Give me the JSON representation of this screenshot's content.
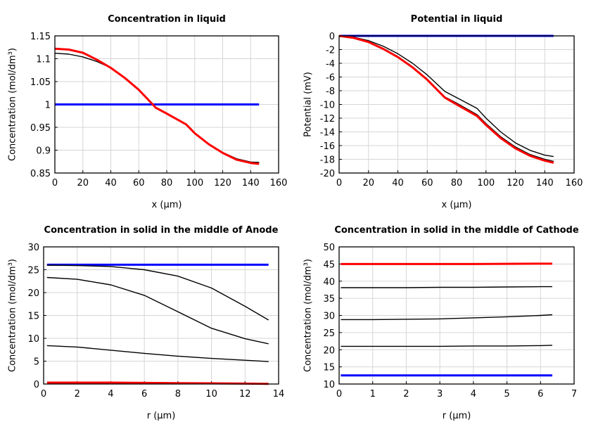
{
  "chart_data": [
    {
      "type": "line",
      "title": "Concentration in liquid",
      "xlabel": "x (µm)",
      "ylabel": "Concentration (mol/dm³)",
      "xlim": [
        0,
        160
      ],
      "ylim": [
        0.85,
        1.15
      ],
      "xticks": [
        0,
        20,
        40,
        60,
        80,
        100,
        120,
        140,
        160
      ],
      "yticks": [
        0.85,
        0.9,
        0.95,
        1,
        1.05,
        1.1,
        1.15
      ],
      "ytick_labels": [
        "0.85",
        "0.9",
        "0.95",
        "1",
        "1.05",
        "1.1",
        "1.15"
      ],
      "grid": true,
      "series": [
        {
          "color": "#0000ff",
          "x": [
            0,
            146
          ],
          "y": [
            1.0,
            1.0
          ]
        },
        {
          "color": "#000000",
          "x": [
            0,
            10,
            20,
            30,
            40,
            50,
            60,
            70,
            72,
            80,
            90,
            94,
            100,
            110,
            120,
            130,
            140,
            146
          ],
          "y": [
            1.112,
            1.11,
            1.104,
            1.094,
            1.08,
            1.058,
            1.032,
            1.0,
            0.993,
            0.98,
            0.963,
            0.957,
            0.938,
            0.914,
            0.895,
            0.881,
            0.874,
            0.873
          ]
        },
        {
          "color": "#000000",
          "x": [
            0,
            10,
            20,
            30,
            40,
            50,
            60,
            70,
            72,
            80,
            90,
            94,
            100,
            110,
            120,
            130,
            140,
            146
          ],
          "y": [
            1.121,
            1.119,
            1.112,
            1.097,
            1.08,
            1.058,
            1.032,
            1.0,
            0.993,
            0.98,
            0.963,
            0.957,
            0.938,
            0.914,
            0.895,
            0.881,
            0.874,
            0.873
          ]
        },
        {
          "color": "#ff0000",
          "x": [
            0,
            10,
            20,
            30,
            40,
            50,
            60,
            70,
            72,
            80,
            90,
            94,
            100,
            110,
            120,
            130,
            140,
            146
          ],
          "y": [
            1.122,
            1.12,
            1.113,
            1.098,
            1.08,
            1.058,
            1.032,
            1.0,
            0.993,
            0.98,
            0.963,
            0.956,
            0.937,
            0.913,
            0.894,
            0.879,
            0.872,
            0.87
          ]
        }
      ]
    },
    {
      "type": "line",
      "title": "Potential in liquid",
      "xlabel": "x (µm)",
      "ylabel": "Potential (mV)",
      "xlim": [
        0,
        160
      ],
      "ylim": [
        -20,
        0
      ],
      "xticks": [
        0,
        20,
        40,
        60,
        80,
        100,
        120,
        140,
        160
      ],
      "yticks": [
        -20,
        -18,
        -16,
        -14,
        -12,
        -10,
        -8,
        -6,
        -4,
        -2,
        0
      ],
      "ytick_labels": [
        "-20",
        "-18",
        "-16",
        "-14",
        "-12",
        "-10",
        "-8",
        "-6",
        "-4",
        "-2",
        "0"
      ],
      "grid": true,
      "series": [
        {
          "color": "#0000ff",
          "x": [
            0,
            146
          ],
          "y": [
            0,
            0
          ]
        },
        {
          "color": "#000000",
          "x": [
            0,
            10,
            20,
            30,
            40,
            50,
            60,
            72,
            80,
            94,
            100,
            110,
            120,
            130,
            140,
            146
          ],
          "y": [
            0,
            -0.2,
            -0.7,
            -1.5,
            -2.6,
            -4.0,
            -5.7,
            -8.1,
            -9.0,
            -10.6,
            -12.0,
            -14.0,
            -15.6,
            -16.7,
            -17.4,
            -17.6
          ]
        },
        {
          "color": "#000000",
          "x": [
            0,
            10,
            20,
            30,
            40,
            50,
            60,
            72,
            80,
            94,
            100,
            110,
            120,
            130,
            140,
            146
          ],
          "y": [
            0,
            -0.3,
            -0.85,
            -1.8,
            -3.0,
            -4.5,
            -6.3,
            -8.9,
            -9.8,
            -11.5,
            -12.8,
            -14.7,
            -16.2,
            -17.3,
            -18.0,
            -18.3
          ]
        },
        {
          "color": "#ff0000",
          "x": [
            0,
            10,
            20,
            30,
            40,
            50,
            60,
            72,
            80,
            94,
            100,
            110,
            120,
            130,
            140,
            146
          ],
          "y": [
            0,
            -0.3,
            -0.9,
            -1.9,
            -3.1,
            -4.6,
            -6.4,
            -9.0,
            -10.0,
            -11.7,
            -13.0,
            -14.9,
            -16.4,
            -17.5,
            -18.2,
            -18.5
          ]
        }
      ]
    },
    {
      "type": "line",
      "title": "Concentration in solid in the middle of Anode",
      "xlabel": "r (µm)",
      "ylabel": "Concentration (mol/dm³)",
      "xlim": [
        0,
        14
      ],
      "ylim": [
        0,
        30
      ],
      "xticks": [
        0,
        2,
        4,
        6,
        8,
        10,
        12,
        14
      ],
      "yticks": [
        0,
        5,
        10,
        15,
        20,
        25,
        30
      ],
      "ytick_labels": [
        "0",
        "5",
        "10",
        "15",
        "20",
        "25",
        "30"
      ],
      "grid": true,
      "series": [
        {
          "color": "#0000ff",
          "x": [
            0.2,
            13.4
          ],
          "y": [
            26.1,
            26.1
          ]
        },
        {
          "color": "#000000",
          "x": [
            0.2,
            2,
            4,
            6,
            8,
            10,
            12,
            13.4
          ],
          "y": [
            26,
            25.9,
            25.7,
            25,
            23.6,
            21,
            17,
            14
          ]
        },
        {
          "color": "#000000",
          "x": [
            0.2,
            2,
            4,
            6,
            8,
            10,
            12,
            13.4
          ],
          "y": [
            23.3,
            22.9,
            21.7,
            19.4,
            15.8,
            12.2,
            9.9,
            8.8
          ]
        },
        {
          "color": "#000000",
          "x": [
            0.2,
            2,
            4,
            6,
            8,
            10,
            12,
            13.4
          ],
          "y": [
            8.4,
            8.1,
            7.4,
            6.7,
            6.1,
            5.6,
            5.2,
            4.9
          ]
        },
        {
          "color": "#ff0000",
          "x": [
            0.2,
            2,
            4,
            6,
            8,
            10,
            12,
            13.4
          ],
          "y": [
            0.3,
            0.3,
            0.3,
            0.25,
            0.2,
            0.15,
            0.1,
            0.05
          ]
        }
      ]
    },
    {
      "type": "line",
      "title": "Concentration in solid in the middle of Cathode",
      "xlabel": "r (µm)",
      "ylabel": "Concentration (mol/dm³)",
      "xlim": [
        0,
        7
      ],
      "ylim": [
        10,
        50
      ],
      "xticks": [
        0,
        1,
        2,
        3,
        4,
        5,
        6,
        7
      ],
      "yticks": [
        10,
        15,
        20,
        25,
        30,
        35,
        40,
        45,
        50
      ],
      "ytick_labels": [
        "10",
        "15",
        "20",
        "25",
        "30",
        "35",
        "40",
        "45",
        "50"
      ],
      "grid": true,
      "series": [
        {
          "color": "#ff0000",
          "x": [
            0.05,
            1,
            2,
            3,
            4,
            5,
            6,
            6.35
          ],
          "y": [
            45,
            45,
            45,
            45,
            45,
            45.05,
            45.1,
            45.1
          ]
        },
        {
          "color": "#000000",
          "x": [
            0.05,
            1,
            2,
            3,
            4,
            5,
            6,
            6.35
          ],
          "y": [
            38.1,
            38.1,
            38.1,
            38.2,
            38.2,
            38.3,
            38.4,
            38.4
          ]
        },
        {
          "color": "#000000",
          "x": [
            0.05,
            1,
            2,
            3,
            4,
            5,
            6,
            6.35
          ],
          "y": [
            28.8,
            28.8,
            28.9,
            29.0,
            29.3,
            29.6,
            30.0,
            30.2
          ]
        },
        {
          "color": "#000000",
          "x": [
            0.05,
            1,
            2,
            3,
            4,
            5,
            6,
            6.35
          ],
          "y": [
            21,
            21,
            21,
            21,
            21.1,
            21.1,
            21.2,
            21.3
          ]
        },
        {
          "color": "#0000ff",
          "x": [
            0.05,
            6.35
          ],
          "y": [
            12.5,
            12.5
          ]
        }
      ]
    }
  ]
}
